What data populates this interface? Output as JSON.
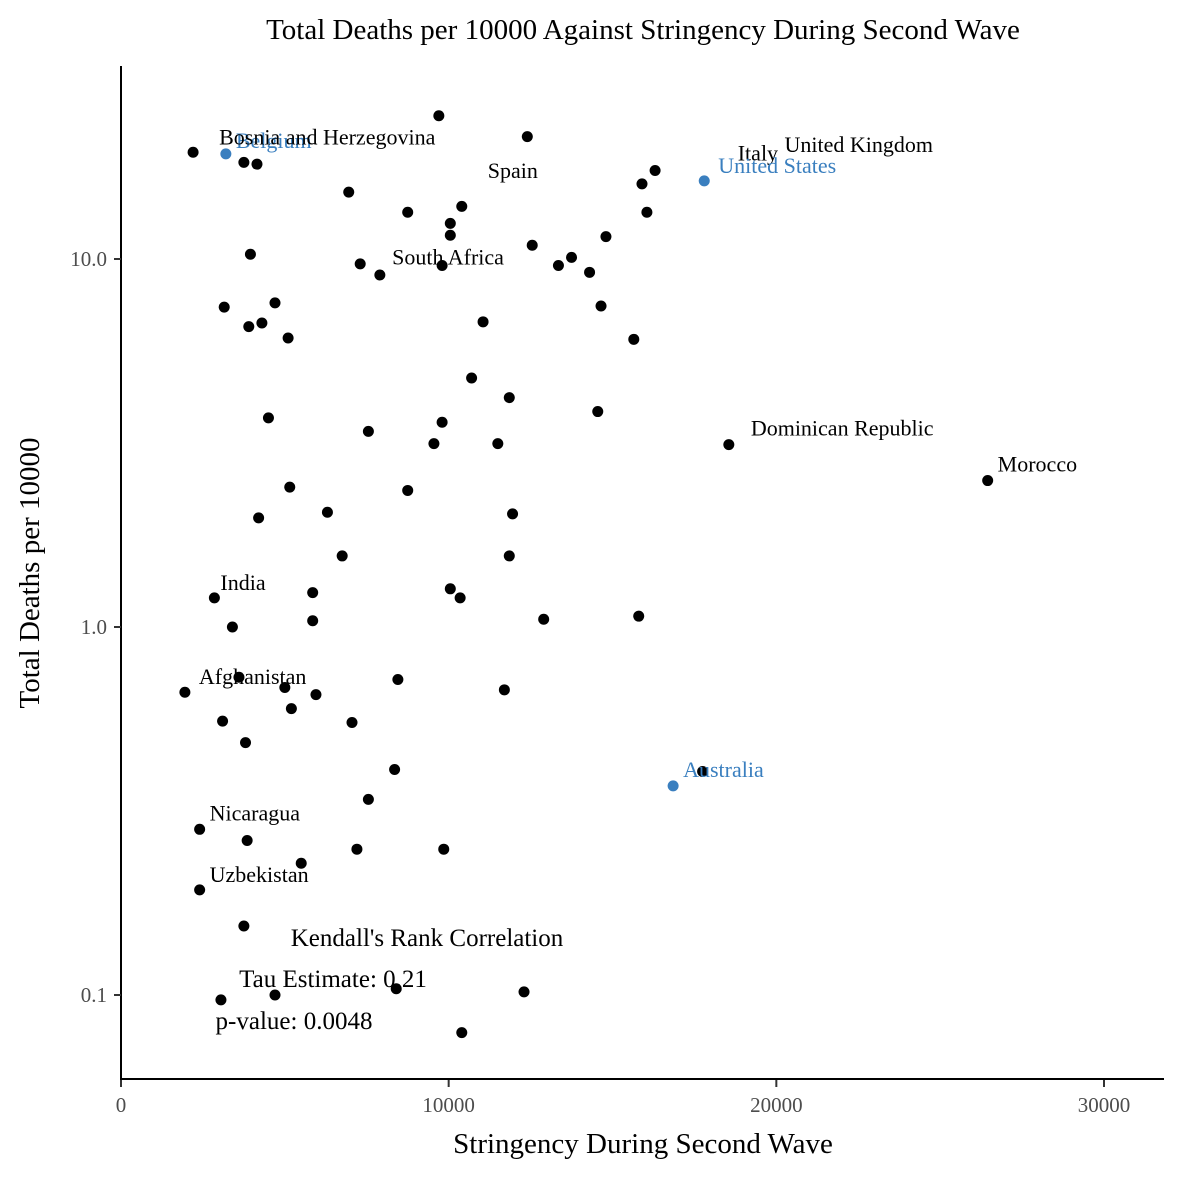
{
  "chart_data": {
    "type": "scatter",
    "title": "Total Deaths per 10000 Against Stringency During Second Wave",
    "xlabel": "Stringency During Second Wave",
    "ylabel": "Total Deaths per 10000",
    "xlim": [
      0,
      32000
    ],
    "ylim": [
      0.06,
      28
    ],
    "y_scale": "log10",
    "x_ticks": [
      0,
      10000,
      20000,
      30000
    ],
    "x_tick_labels": [
      "0",
      "10000",
      "20000",
      "30000"
    ],
    "y_ticks": [
      0.1,
      1,
      10
    ],
    "y_tick_labels": [
      "0.1",
      "1.0",
      "10.0"
    ],
    "grid": false,
    "colors": {
      "default": "#000000",
      "highlight": "#3a7fbf"
    },
    "points": [
      {
        "x": 9700,
        "y": 24.5
      },
      {
        "x": 12400,
        "y": 21.5
      },
      {
        "x": 2200,
        "y": 19.5
      },
      {
        "x": 3750,
        "y": 18.3
      },
      {
        "x": 4150,
        "y": 18.1
      },
      {
        "x": 6950,
        "y": 15.2
      },
      {
        "x": 16300,
        "y": 17.4
      },
      {
        "x": 15900,
        "y": 16.0
      },
      {
        "x": 10400,
        "y": 13.9
      },
      {
        "x": 8750,
        "y": 13.4
      },
      {
        "x": 16050,
        "y": 13.4
      },
      {
        "x": 10050,
        "y": 12.5
      },
      {
        "x": 10050,
        "y": 11.6
      },
      {
        "x": 14800,
        "y": 11.5
      },
      {
        "x": 12550,
        "y": 10.9
      },
      {
        "x": 3950,
        "y": 10.3
      },
      {
        "x": 13750,
        "y": 10.1
      },
      {
        "x": 7300,
        "y": 9.7
      },
      {
        "x": 9800,
        "y": 9.6
      },
      {
        "x": 13350,
        "y": 9.6
      },
      {
        "x": 14300,
        "y": 9.2
      },
      {
        "x": 7900,
        "y": 9.05
      },
      {
        "x": 4700,
        "y": 7.6
      },
      {
        "x": 3150,
        "y": 7.4
      },
      {
        "x": 14650,
        "y": 7.45
      },
      {
        "x": 11050,
        "y": 6.75
      },
      {
        "x": 4300,
        "y": 6.7
      },
      {
        "x": 3900,
        "y": 6.55
      },
      {
        "x": 5100,
        "y": 6.1
      },
      {
        "x": 15650,
        "y": 6.05
      },
      {
        "x": 10700,
        "y": 4.75
      },
      {
        "x": 11850,
        "y": 4.2
      },
      {
        "x": 14550,
        "y": 3.85
      },
      {
        "x": 4500,
        "y": 3.7
      },
      {
        "x": 9800,
        "y": 3.6
      },
      {
        "x": 7550,
        "y": 3.4
      },
      {
        "x": 9550,
        "y": 3.15
      },
      {
        "x": 11500,
        "y": 3.15
      },
      {
        "x": 18550,
        "y": 3.13
      },
      {
        "x": 26450,
        "y": 2.5
      },
      {
        "x": 5150,
        "y": 2.4
      },
      {
        "x": 8750,
        "y": 2.35
      },
      {
        "x": 6300,
        "y": 2.05
      },
      {
        "x": 11950,
        "y": 2.03
      },
      {
        "x": 4200,
        "y": 1.98
      },
      {
        "x": 6750,
        "y": 1.56
      },
      {
        "x": 11850,
        "y": 1.56
      },
      {
        "x": 10050,
        "y": 1.27
      },
      {
        "x": 5850,
        "y": 1.24
      },
      {
        "x": 10350,
        "y": 1.2
      },
      {
        "x": 2850,
        "y": 1.2
      },
      {
        "x": 15800,
        "y": 1.07
      },
      {
        "x": 12900,
        "y": 1.05
      },
      {
        "x": 5850,
        "y": 1.04
      },
      {
        "x": 3400,
        "y": 1.0
      },
      {
        "x": 3600,
        "y": 0.73
      },
      {
        "x": 8450,
        "y": 0.72
      },
      {
        "x": 1950,
        "y": 0.665
      },
      {
        "x": 5000,
        "y": 0.685
      },
      {
        "x": 11700,
        "y": 0.675
      },
      {
        "x": 5950,
        "y": 0.655
      },
      {
        "x": 5200,
        "y": 0.6
      },
      {
        "x": 3100,
        "y": 0.555
      },
      {
        "x": 7050,
        "y": 0.55
      },
      {
        "x": 3800,
        "y": 0.485
      },
      {
        "x": 8350,
        "y": 0.41
      },
      {
        "x": 17750,
        "y": 0.405
      },
      {
        "x": 7550,
        "y": 0.34
      },
      {
        "x": 2400,
        "y": 0.282
      },
      {
        "x": 3850,
        "y": 0.263
      },
      {
        "x": 7200,
        "y": 0.249
      },
      {
        "x": 9850,
        "y": 0.249
      },
      {
        "x": 5500,
        "y": 0.228
      },
      {
        "x": 2400,
        "y": 0.193
      },
      {
        "x": 3750,
        "y": 0.154
      },
      {
        "x": 4700,
        "y": 0.1
      },
      {
        "x": 8400,
        "y": 0.104
      },
      {
        "x": 12300,
        "y": 0.102
      },
      {
        "x": 3050,
        "y": 0.097
      },
      {
        "x": 10400,
        "y": 0.079
      },
      {
        "x": 3200,
        "y": 19.3,
        "highlight": true
      },
      {
        "x": 17800,
        "y": 16.3,
        "highlight": true
      },
      {
        "x": 16850,
        "y": 0.37,
        "highlight": true
      }
    ],
    "labels": [
      {
        "text": "Belgium",
        "x": 3200,
        "y": 19.3,
        "highlight": true,
        "dx": 10,
        "dy": -6
      },
      {
        "text": "Bosnia and Herzegovina",
        "x": 2200,
        "y": 19.5,
        "highlight": false,
        "dx": 26,
        "dy": -8
      },
      {
        "text": "Spain",
        "x": 10950,
        "y": 15.8,
        "highlight": false,
        "dx": 8,
        "dy": -8
      },
      {
        "text": "Italy",
        "x": 18700,
        "y": 17.6,
        "highlight": false,
        "dx": 4,
        "dy": -8
      },
      {
        "text": "United Kingdom",
        "x": 19700,
        "y": 18.6,
        "highlight": false,
        "dx": 18,
        "dy": -8
      },
      {
        "text": "United States",
        "x": 17800,
        "y": 16.3,
        "highlight": true,
        "dx": 14,
        "dy": -8
      },
      {
        "text": "South Africa",
        "x": 9800,
        "y": 9.6,
        "highlight": false,
        "dx": -50,
        "dy": -1
      },
      {
        "text": "Dominican Republic",
        "x": 18550,
        "y": 3.13,
        "highlight": false,
        "dx": 22,
        "dy": -9
      },
      {
        "text": "Morocco",
        "x": 26450,
        "y": 2.5,
        "highlight": false,
        "dx": 10,
        "dy": -9
      },
      {
        "text": "India",
        "x": 2850,
        "y": 1.2,
        "highlight": false,
        "dx": 6,
        "dy": -8
      },
      {
        "text": "Afghanistan",
        "x": 1950,
        "y": 0.665,
        "highlight": false,
        "dx": 14,
        "dy": -8
      },
      {
        "text": "Australia",
        "x": 16850,
        "y": 0.37,
        "highlight": true,
        "dx": 10,
        "dy": -9
      },
      {
        "text": "Nicaragua",
        "x": 2400,
        "y": 0.282,
        "highlight": false,
        "dx": 10,
        "dy": -9
      },
      {
        "text": "Uzbekistan",
        "x": 2400,
        "y": 0.193,
        "highlight": false,
        "dx": 10,
        "dy": -8
      }
    ],
    "annotations": [
      "Kendall's Rank Correlation",
      "Tau Estimate: 0.21",
      "p-value: 0.0048"
    ]
  }
}
